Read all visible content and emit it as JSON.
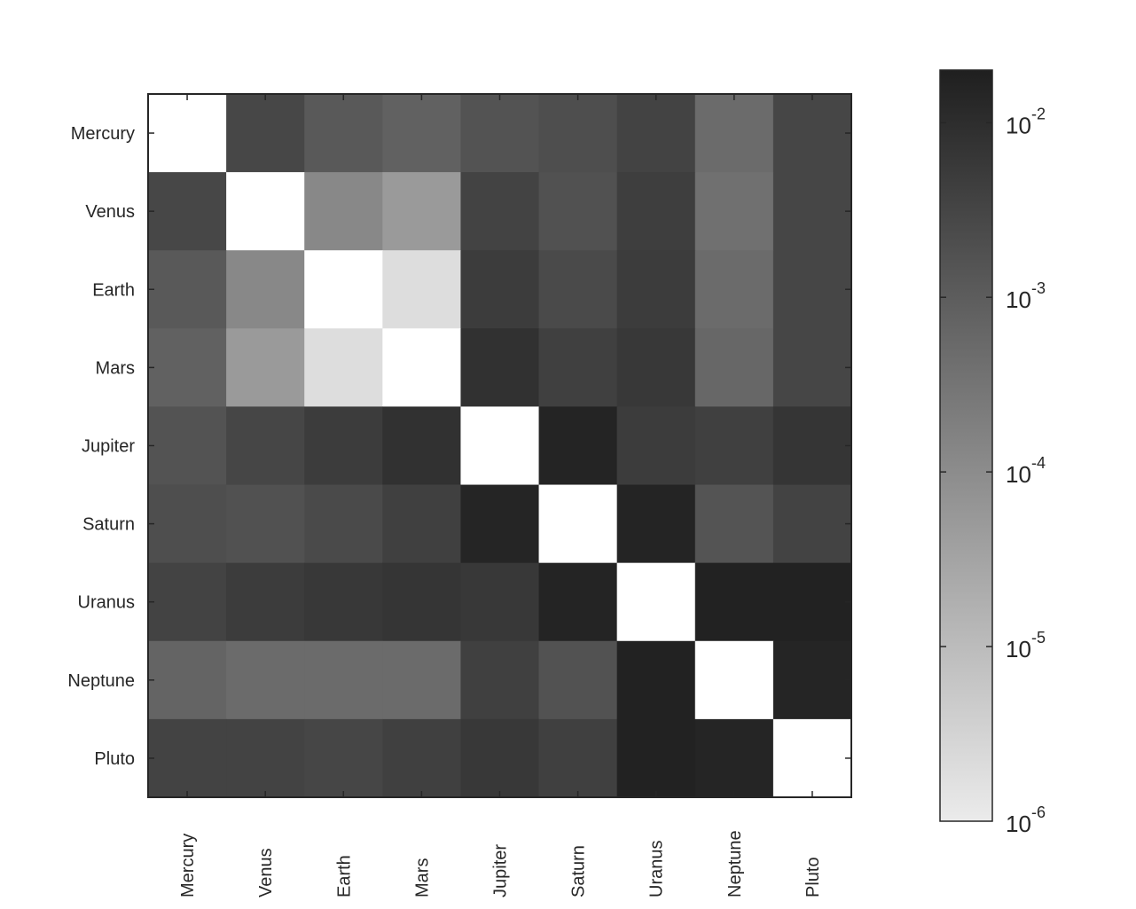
{
  "chart_data": {
    "type": "heatmap",
    "title": "",
    "xlabel": "",
    "ylabel": "",
    "rows": [
      "Mercury",
      "Venus",
      "Earth",
      "Mars",
      "Jupiter",
      "Saturn",
      "Uranus",
      "Neptune",
      "Pluto"
    ],
    "columns": [
      "Mercury",
      "Venus",
      "Earth",
      "Mars",
      "Jupiter",
      "Saturn",
      "Uranus",
      "Neptune",
      "Pluto"
    ],
    "values": [
      [
        null,
        0.0028,
        0.0012,
        0.0008,
        0.0016,
        0.002,
        0.0035,
        0.0005,
        0.003
      ],
      [
        0.0028,
        null,
        0.00012,
        5e-05,
        0.0035,
        0.0018,
        0.0045,
        0.0004,
        0.003
      ],
      [
        0.0012,
        0.00012,
        null,
        2e-06,
        0.005,
        0.0025,
        0.005,
        0.0005,
        0.003
      ],
      [
        0.0008,
        5e-05,
        2e-06,
        null,
        0.0085,
        0.004,
        0.006,
        0.0006,
        0.003
      ],
      [
        0.0016,
        0.003,
        0.005,
        0.0085,
        null,
        0.016,
        0.005,
        0.004,
        0.007
      ],
      [
        0.002,
        0.0018,
        0.0025,
        0.004,
        0.015,
        null,
        0.016,
        0.0015,
        0.0035
      ],
      [
        0.0035,
        0.005,
        0.006,
        0.007,
        0.006,
        0.016,
        null,
        0.017,
        0.017
      ],
      [
        0.0007,
        0.0005,
        0.0005,
        0.0005,
        0.004,
        0.0017,
        0.017,
        null,
        0.015
      ],
      [
        0.0035,
        0.0035,
        0.003,
        0.004,
        0.006,
        0.004,
        0.017,
        0.015,
        null
      ]
    ],
    "color_scale": "log",
    "colormap": [
      "#ebebeb",
      "#1f1f1f"
    ],
    "diagonal_color": "#ffffff",
    "colorbar": {
      "range": [
        1e-06,
        0.02
      ],
      "ticks": [
        {
          "base": "10",
          "exp": "-2",
          "value": 0.01
        },
        {
          "base": "10",
          "exp": "-3",
          "value": 0.001
        },
        {
          "base": "10",
          "exp": "-4",
          "value": 0.0001
        },
        {
          "base": "10",
          "exp": "-5",
          "value": 1e-05
        },
        {
          "base": "10",
          "exp": "-6",
          "value": 1e-06
        }
      ]
    }
  }
}
